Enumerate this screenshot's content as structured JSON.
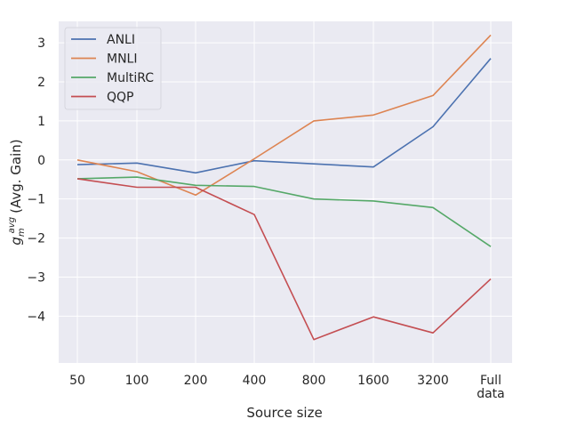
{
  "chart_data": {
    "type": "line",
    "title": "",
    "xlabel": "Source size",
    "ylabel": "(Avg. Gain)",
    "ylabel_symbol": "g",
    "ylabel_sup": "avg",
    "ylabel_sub": "m",
    "categories": [
      "50",
      "100",
      "200",
      "400",
      "800",
      "1600",
      "3200",
      "Full\ndata"
    ],
    "yticks": [
      3,
      2,
      1,
      0,
      -1,
      -2,
      -3,
      -4
    ],
    "ytick_labels": [
      "3",
      "2",
      "1",
      "0",
      "−1",
      "−2",
      "−3",
      "−4"
    ],
    "ylim": [
      -5.2,
      3.55
    ],
    "grid": true,
    "legend_position": "top-left",
    "series": [
      {
        "name": "ANLI",
        "color": "#4c72b0",
        "values": [
          -0.12,
          -0.08,
          -0.33,
          -0.02,
          -0.1,
          -0.18,
          0.85,
          2.6
        ]
      },
      {
        "name": "MNLI",
        "color": "#dd8452",
        "values": [
          0.0,
          -0.3,
          -0.9,
          0.03,
          1.0,
          1.15,
          1.65,
          3.2
        ]
      },
      {
        "name": "MultiRC",
        "color": "#55a868",
        "values": [
          -0.48,
          -0.44,
          -0.65,
          -0.68,
          -1.0,
          -1.05,
          -1.22,
          -2.22
        ]
      },
      {
        "name": "QQP",
        "color": "#c44e52",
        "values": [
          -0.48,
          -0.7,
          -0.7,
          -1.4,
          -4.6,
          -4.02,
          -4.43,
          -3.05
        ]
      }
    ]
  }
}
